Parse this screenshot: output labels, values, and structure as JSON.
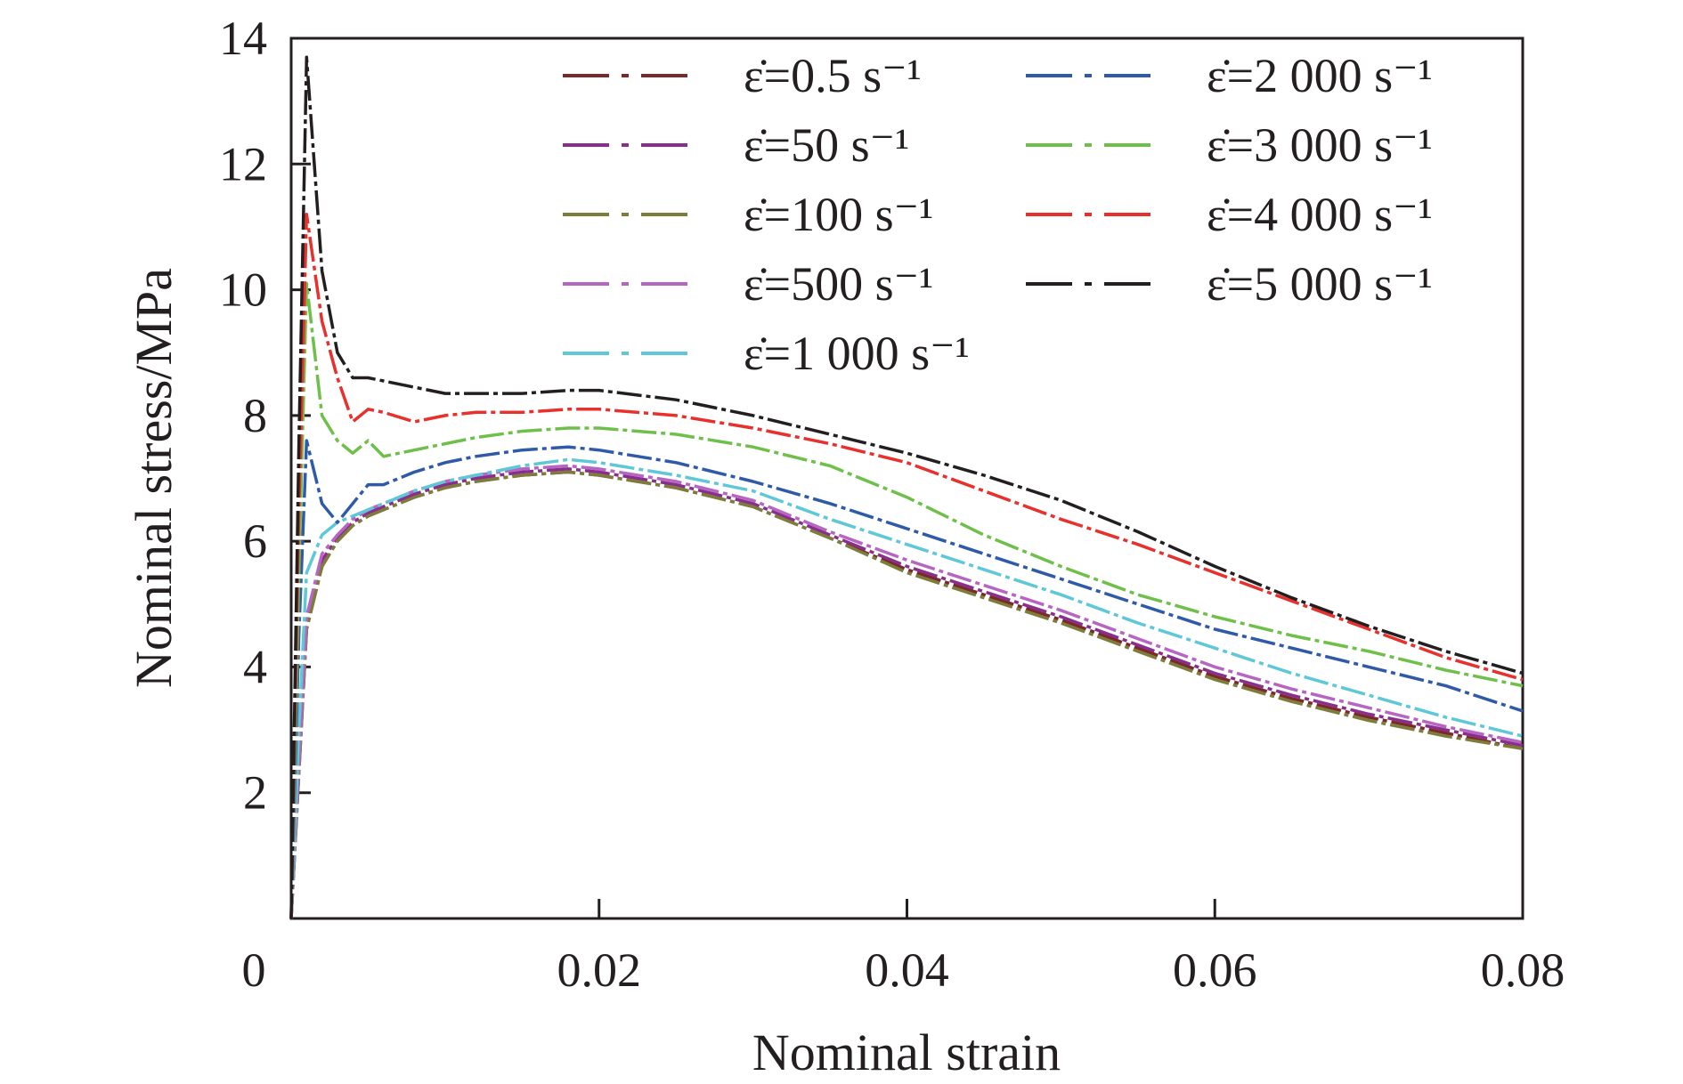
{
  "chart_data": {
    "type": "line",
    "xlabel": "Nominal strain",
    "ylabel": "Nominal stress/MPa",
    "xlim": [
      0,
      0.08
    ],
    "ylim": [
      0,
      14
    ],
    "x_ticks": [
      "0",
      "0.02",
      "0.04",
      "0.06",
      "0.08"
    ],
    "y_ticks": [
      "2",
      "4",
      "6",
      "8",
      "10",
      "12",
      "14"
    ],
    "x_tick_values": [
      0,
      0.02,
      0.04,
      0.06,
      0.08
    ],
    "y_tick_values": [
      2,
      4,
      6,
      8,
      10,
      12,
      14
    ],
    "grid": false,
    "legend_position": "top-right",
    "x": [
      0,
      0.0005,
      0.001,
      0.002,
      0.003,
      0.004,
      0.005,
      0.006,
      0.008,
      0.01,
      0.012,
      0.015,
      0.018,
      0.02,
      0.025,
      0.03,
      0.035,
      0.04,
      0.045,
      0.05,
      0.055,
      0.06,
      0.065,
      0.07,
      0.075,
      0.08
    ],
    "series": [
      {
        "name": "ε̇=0.5 s⁻¹",
        "color": "#7a2a2a",
        "values": [
          0,
          2.3,
          4.6,
          5.6,
          6.0,
          6.25,
          6.4,
          6.5,
          6.7,
          6.85,
          6.95,
          7.05,
          7.1,
          7.05,
          6.85,
          6.55,
          6.05,
          5.55,
          5.15,
          4.75,
          4.3,
          3.85,
          3.5,
          3.2,
          2.95,
          2.7
        ]
      },
      {
        "name": "ε̇=50 s⁻¹",
        "color": "#8a2e8e",
        "values": [
          0,
          2.4,
          4.7,
          5.7,
          6.05,
          6.3,
          6.45,
          6.55,
          6.75,
          6.9,
          7.0,
          7.1,
          7.15,
          7.1,
          6.9,
          6.6,
          6.1,
          5.6,
          5.2,
          4.8,
          4.35,
          3.9,
          3.55,
          3.25,
          3.0,
          2.75
        ]
      },
      {
        "name": "ε̇=100 s⁻¹",
        "color": "#7d7d3a",
        "values": [
          0,
          2.3,
          4.6,
          5.6,
          6.0,
          6.25,
          6.4,
          6.5,
          6.7,
          6.85,
          6.95,
          7.05,
          7.1,
          7.05,
          6.85,
          6.55,
          6.05,
          5.5,
          5.1,
          4.7,
          4.25,
          3.8,
          3.45,
          3.15,
          2.9,
          2.7
        ]
      },
      {
        "name": "ε̇=500 s⁻¹",
        "color": "#b666c2",
        "values": [
          0,
          2.5,
          4.8,
          5.8,
          6.1,
          6.35,
          6.5,
          6.6,
          6.8,
          6.95,
          7.05,
          7.15,
          7.2,
          7.15,
          6.95,
          6.65,
          6.15,
          5.7,
          5.3,
          4.9,
          4.45,
          4.0,
          3.65,
          3.35,
          3.05,
          2.8
        ]
      },
      {
        "name": "ε̇=1 000 s⁻¹",
        "color": "#5ec8d8",
        "values": [
          0,
          3.0,
          5.5,
          6.1,
          6.3,
          6.4,
          6.5,
          6.6,
          6.8,
          6.95,
          7.05,
          7.2,
          7.3,
          7.25,
          7.05,
          6.8,
          6.35,
          5.95,
          5.55,
          5.15,
          4.7,
          4.3,
          3.9,
          3.55,
          3.2,
          2.9
        ]
      },
      {
        "name": "ε̇=2 000 s⁻¹",
        "color": "#2e5aa8",
        "values": [
          0,
          4.5,
          7.6,
          6.6,
          6.3,
          6.6,
          6.9,
          6.9,
          7.1,
          7.25,
          7.35,
          7.45,
          7.5,
          7.45,
          7.25,
          6.95,
          6.6,
          6.2,
          5.8,
          5.4,
          5.0,
          4.6,
          4.3,
          4.0,
          3.7,
          3.3
        ]
      },
      {
        "name": "ε̇=3 000 s⁻¹",
        "color": "#6ec04a",
        "values": [
          0,
          5.5,
          10.1,
          8.0,
          7.6,
          7.4,
          7.6,
          7.35,
          7.45,
          7.55,
          7.65,
          7.75,
          7.8,
          7.8,
          7.7,
          7.5,
          7.2,
          6.7,
          6.1,
          5.6,
          5.15,
          4.8,
          4.5,
          4.25,
          3.95,
          3.7
        ]
      },
      {
        "name": "ε̇=4 000 s⁻¹",
        "color": "#e8302c",
        "values": [
          0,
          6.5,
          11.2,
          9.5,
          8.6,
          7.9,
          8.1,
          8.05,
          7.9,
          8.0,
          8.05,
          8.05,
          8.1,
          8.1,
          8.0,
          7.8,
          7.55,
          7.25,
          6.8,
          6.35,
          5.95,
          5.5,
          5.05,
          4.6,
          4.15,
          3.8
        ]
      },
      {
        "name": "ε̇=5 000 s⁻¹",
        "color": "#231f20",
        "values": [
          0,
          7.5,
          13.7,
          10.3,
          9.0,
          8.6,
          8.6,
          8.55,
          8.45,
          8.35,
          8.35,
          8.35,
          8.4,
          8.4,
          8.25,
          8.0,
          7.7,
          7.4,
          7.05,
          6.65,
          6.15,
          5.6,
          5.1,
          4.65,
          4.25,
          3.9
        ]
      }
    ]
  }
}
